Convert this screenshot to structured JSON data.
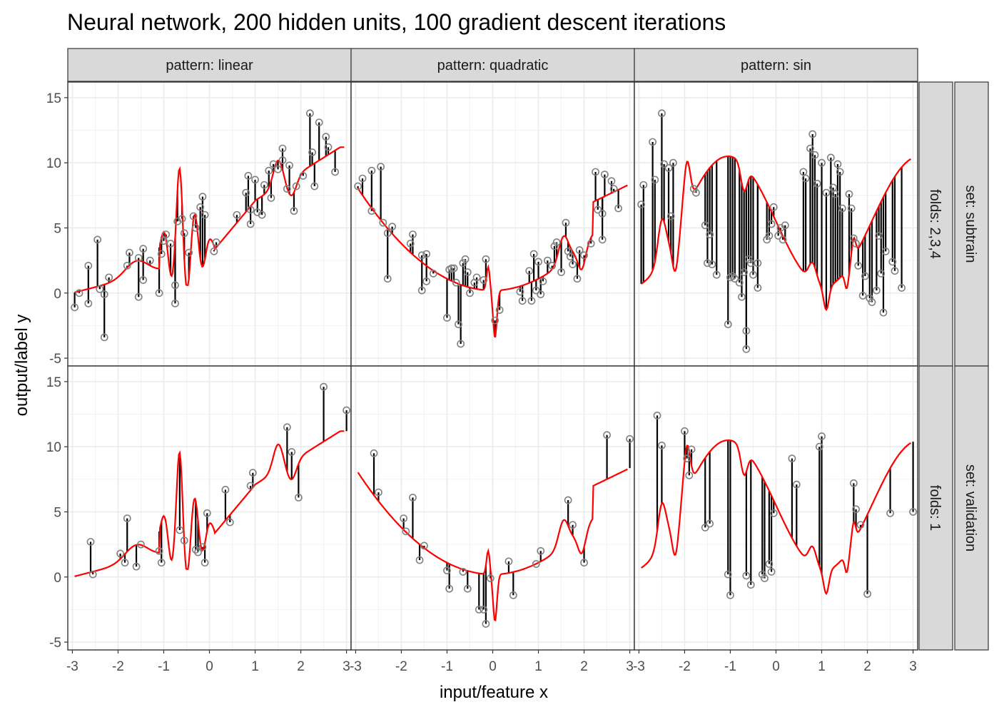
{
  "chart_data": {
    "type": "scatter",
    "title": "Neural network, 200 hidden units, 100 gradient descent iterations",
    "xlabel": "input/feature x",
    "ylabel": "output/label y",
    "xlim": [
      -3.1,
      3.1
    ],
    "ylim": [
      -5,
      15
    ],
    "x_ticks": [
      -3,
      -2,
      -1,
      0,
      1,
      2,
      3
    ],
    "y_ticks": [
      -5,
      0,
      5,
      10,
      15
    ],
    "column_facet": [
      "pattern: linear",
      "pattern: quadratic",
      "pattern: sin"
    ],
    "row_facet_outer": [
      "set: subtrain",
      "set: validation"
    ],
    "row_facet_inner": [
      "folds: 2,3,4",
      "folds: 1"
    ],
    "grid": true,
    "colors": {
      "prediction_line": "#ff0000",
      "residual_segment": "#000000",
      "points": "#808080",
      "strip_fill": "#d9d9d9",
      "border": "#333333"
    },
    "panels": [
      {
        "pattern": "pattern: linear",
        "set": "set: subtrain",
        "points": [
          [
            -2.95,
            -1.1
          ],
          [
            -2.85,
            0.0
          ],
          [
            -2.65,
            2.1
          ],
          [
            -2.65,
            -0.8
          ],
          [
            -2.45,
            4.1
          ],
          [
            -2.4,
            0.3
          ],
          [
            -2.3,
            -3.4
          ],
          [
            -2.3,
            -0.1
          ],
          [
            -2.2,
            1.2
          ],
          [
            -1.8,
            2.1
          ],
          [
            -1.75,
            3.1
          ],
          [
            -1.55,
            2.7
          ],
          [
            -1.55,
            -0.3
          ],
          [
            -1.45,
            3.4
          ],
          [
            -1.45,
            1.0
          ],
          [
            -1.3,
            2.5
          ],
          [
            -1.1,
            0.0
          ],
          [
            -1.05,
            3.0
          ],
          [
            -1.0,
            4.0
          ],
          [
            -0.95,
            4.5
          ],
          [
            -0.85,
            3.8
          ],
          [
            -0.75,
            0.6
          ],
          [
            -0.75,
            -0.8
          ],
          [
            -0.7,
            5.5
          ],
          [
            -0.6,
            5.7
          ],
          [
            -0.55,
            4.6
          ],
          [
            -0.45,
            3.1
          ],
          [
            -0.35,
            5.9
          ],
          [
            -0.3,
            5.0
          ],
          [
            -0.2,
            6.6
          ],
          [
            -0.15,
            7.4
          ],
          [
            -0.1,
            6.0
          ],
          [
            0.1,
            3.2
          ],
          [
            0.15,
            3.9
          ],
          [
            0.6,
            6.0
          ],
          [
            0.8,
            7.7
          ],
          [
            0.85,
            9.0
          ],
          [
            0.9,
            6.4
          ],
          [
            0.9,
            5.3
          ],
          [
            1.0,
            8.7
          ],
          [
            1.05,
            6.2
          ],
          [
            1.15,
            6.0
          ],
          [
            1.2,
            8.3
          ],
          [
            1.3,
            9.4
          ],
          [
            1.35,
            7.3
          ],
          [
            1.4,
            9.9
          ],
          [
            1.5,
            9.5
          ],
          [
            1.6,
            11.1
          ],
          [
            1.6,
            10.2
          ],
          [
            1.7,
            8.0
          ],
          [
            1.75,
            9.8
          ],
          [
            1.85,
            6.3
          ],
          [
            1.9,
            8.2
          ],
          [
            2.05,
            9.0
          ],
          [
            2.2,
            13.8
          ],
          [
            2.25,
            10.8
          ],
          [
            2.3,
            8.2
          ],
          [
            2.4,
            13.1
          ],
          [
            2.55,
            12.0
          ],
          [
            2.6,
            11.2
          ],
          [
            2.75,
            9.3
          ]
        ]
      },
      {
        "pattern": "pattern: quadratic",
        "set": "set: subtrain",
        "points": [
          [
            -2.95,
            8.2
          ],
          [
            -2.85,
            8.8
          ],
          [
            -2.65,
            9.4
          ],
          [
            -2.65,
            6.3
          ],
          [
            -2.45,
            9.7
          ],
          [
            -2.4,
            5.4
          ],
          [
            -2.3,
            4.6
          ],
          [
            -2.3,
            1.1
          ],
          [
            -2.2,
            5.1
          ],
          [
            -1.8,
            3.8
          ],
          [
            -1.75,
            4.5
          ],
          [
            -1.55,
            2.9
          ],
          [
            -1.55,
            0.2
          ],
          [
            -1.45,
            3.0
          ],
          [
            -1.45,
            0.9
          ],
          [
            -1.3,
            1.5
          ],
          [
            -1.0,
            -1.9
          ],
          [
            -0.95,
            1.8
          ],
          [
            -0.9,
            1.9
          ],
          [
            -0.85,
            1.9
          ],
          [
            -0.8,
            0.8
          ],
          [
            -0.75,
            -2.4
          ],
          [
            -0.7,
            -3.9
          ],
          [
            -0.65,
            2.3
          ],
          [
            -0.6,
            2.6
          ],
          [
            -0.55,
            1.6
          ],
          [
            -0.5,
            0.0
          ],
          [
            -0.4,
            0.8
          ],
          [
            -0.35,
            1.2
          ],
          [
            -0.2,
            1.0
          ],
          [
            -0.15,
            2.6
          ],
          [
            0.05,
            -2.1
          ],
          [
            0.15,
            -1.3
          ],
          [
            0.6,
            0.1
          ],
          [
            0.65,
            -0.6
          ],
          [
            0.8,
            1.7
          ],
          [
            0.85,
            -0.6
          ],
          [
            0.9,
            3.0
          ],
          [
            0.95,
            0.2
          ],
          [
            1.0,
            2.4
          ],
          [
            1.05,
            -0.1
          ],
          [
            1.1,
            0.9
          ],
          [
            1.2,
            2.5
          ],
          [
            1.3,
            2.1
          ],
          [
            1.35,
            3.6
          ],
          [
            1.4,
            3.9
          ],
          [
            1.5,
            1.6
          ],
          [
            1.6,
            5.4
          ],
          [
            1.65,
            3.2
          ],
          [
            1.7,
            2.8
          ],
          [
            1.75,
            2.2
          ],
          [
            1.85,
            1.1
          ],
          [
            1.9,
            3.3
          ],
          [
            2.0,
            2.9
          ],
          [
            2.15,
            3.8
          ],
          [
            2.25,
            9.3
          ],
          [
            2.3,
            6.4
          ],
          [
            2.4,
            6.1
          ],
          [
            2.4,
            4.1
          ],
          [
            2.45,
            9.1
          ],
          [
            2.6,
            8.6
          ],
          [
            2.65,
            8.0
          ],
          [
            2.75,
            6.5
          ]
        ]
      },
      {
        "pattern": "pattern: sin",
        "set": "set: subtrain",
        "points": [
          [
            -2.95,
            6.8
          ],
          [
            -2.9,
            8.3
          ],
          [
            -2.7,
            11.6
          ],
          [
            -2.65,
            8.7
          ],
          [
            -2.5,
            13.8
          ],
          [
            -2.45,
            9.9
          ],
          [
            -2.35,
            9.6
          ],
          [
            -2.3,
            5.9
          ],
          [
            -2.25,
            10.0
          ],
          [
            -1.8,
            8.0
          ],
          [
            -1.75,
            7.7
          ],
          [
            -1.55,
            5.2
          ],
          [
            -1.5,
            2.3
          ],
          [
            -1.45,
            4.5
          ],
          [
            -1.4,
            2.2
          ],
          [
            -1.3,
            1.4
          ],
          [
            -1.05,
            -2.4
          ],
          [
            -1.0,
            1.2
          ],
          [
            -0.95,
            1.3
          ],
          [
            -0.9,
            1.1
          ],
          [
            -0.8,
            0.8
          ],
          [
            -0.75,
            -0.3
          ],
          [
            -0.7,
            1.6
          ],
          [
            -0.65,
            -2.9
          ],
          [
            -0.65,
            -4.3
          ],
          [
            -0.6,
            2.6
          ],
          [
            -0.55,
            2.3
          ],
          [
            -0.5,
            1.4
          ],
          [
            -0.4,
            0.4
          ],
          [
            -0.4,
            2.3
          ],
          [
            -0.2,
            4.1
          ],
          [
            -0.15,
            4.4
          ],
          [
            -0.1,
            5.3
          ],
          [
            -0.05,
            6.6
          ],
          [
            0.05,
            4.4
          ],
          [
            0.1,
            5.0
          ],
          [
            0.15,
            4.1
          ],
          [
            0.2,
            5.2
          ],
          [
            0.6,
            9.3
          ],
          [
            0.65,
            8.8
          ],
          [
            0.75,
            11.1
          ],
          [
            0.8,
            12.2
          ],
          [
            0.85,
            10.6
          ],
          [
            0.9,
            8.4
          ],
          [
            1.0,
            10.0
          ],
          [
            1.1,
            7.7
          ],
          [
            1.2,
            10.4
          ],
          [
            1.25,
            8.1
          ],
          [
            1.3,
            7.6
          ],
          [
            1.35,
            9.9
          ],
          [
            1.4,
            9.3
          ],
          [
            1.45,
            6.5
          ],
          [
            1.6,
            7.6
          ],
          [
            1.65,
            6.5
          ],
          [
            1.7,
            4.2
          ],
          [
            1.75,
            3.8
          ],
          [
            1.8,
            2.1
          ],
          [
            1.9,
            -0.2
          ],
          [
            1.95,
            1.3
          ],
          [
            2.05,
            -0.4
          ],
          [
            2.1,
            -0.7
          ],
          [
            2.2,
            0.2
          ],
          [
            2.25,
            4.4
          ],
          [
            2.3,
            1.5
          ],
          [
            2.35,
            -1.5
          ],
          [
            2.4,
            3.2
          ],
          [
            2.55,
            2.4
          ],
          [
            2.6,
            1.7
          ],
          [
            2.75,
            0.4
          ]
        ]
      },
      {
        "pattern": "pattern: linear",
        "set": "set: validation",
        "points": [
          [
            -2.6,
            2.7
          ],
          [
            -2.55,
            0.2
          ],
          [
            -1.95,
            1.8
          ],
          [
            -1.85,
            1.1
          ],
          [
            -1.8,
            4.5
          ],
          [
            -1.6,
            0.8
          ],
          [
            -1.5,
            2.5
          ],
          [
            -1.1,
            2.0
          ],
          [
            -1.05,
            1.1
          ],
          [
            -0.65,
            3.6
          ],
          [
            -0.55,
            2.8
          ],
          [
            -0.3,
            2.1
          ],
          [
            -0.25,
            1.9
          ],
          [
            -0.15,
            2.3
          ],
          [
            -0.1,
            1.1
          ],
          [
            -0.05,
            4.9
          ],
          [
            0.35,
            6.7
          ],
          [
            0.45,
            4.2
          ],
          [
            0.9,
            7.0
          ],
          [
            0.95,
            8.0
          ],
          [
            1.7,
            11.5
          ],
          [
            1.8,
            9.6
          ],
          [
            1.95,
            6.1
          ],
          [
            2.5,
            14.6
          ],
          [
            3.0,
            12.8
          ]
        ]
      },
      {
        "pattern": "pattern: quadratic",
        "set": "set: validation",
        "points": [
          [
            -2.6,
            9.5
          ],
          [
            -2.5,
            6.5
          ],
          [
            -1.95,
            4.5
          ],
          [
            -1.9,
            3.5
          ],
          [
            -1.75,
            6.1
          ],
          [
            -1.6,
            1.3
          ],
          [
            -1.5,
            2.4
          ],
          [
            -1.0,
            0.5
          ],
          [
            -0.95,
            -0.9
          ],
          [
            -0.65,
            0.4
          ],
          [
            -0.55,
            -0.9
          ],
          [
            -0.3,
            -2.5
          ],
          [
            -0.2,
            -2.5
          ],
          [
            -0.15,
            -3.6
          ],
          [
            -0.05,
            -0.1
          ],
          [
            0.35,
            1.2
          ],
          [
            0.45,
            -1.4
          ],
          [
            0.95,
            1.0
          ],
          [
            1.05,
            2.0
          ],
          [
            1.65,
            5.9
          ],
          [
            1.75,
            4.0
          ],
          [
            2.0,
            1.1
          ],
          [
            2.5,
            10.9
          ],
          [
            3.0,
            10.6
          ]
        ]
      },
      {
        "pattern": "pattern: sin",
        "set": "set: validation",
        "points": [
          [
            -2.6,
            12.4
          ],
          [
            -2.5,
            10.1
          ],
          [
            -2.0,
            11.2
          ],
          [
            -1.95,
            9.1
          ],
          [
            -1.9,
            7.8
          ],
          [
            -1.85,
            9.8
          ],
          [
            -1.55,
            3.8
          ],
          [
            -1.45,
            4.1
          ],
          [
            -1.05,
            0.2
          ],
          [
            -1.0,
            -1.4
          ],
          [
            -0.65,
            0.1
          ],
          [
            -0.55,
            -0.6
          ],
          [
            -0.3,
            0.2
          ],
          [
            -0.25,
            -0.1
          ],
          [
            -0.15,
            1.0
          ],
          [
            -0.1,
            0.4
          ],
          [
            -0.05,
            4.9
          ],
          [
            0.35,
            9.1
          ],
          [
            0.45,
            7.1
          ],
          [
            0.95,
            10.0
          ],
          [
            1.0,
            10.8
          ],
          [
            1.7,
            7.2
          ],
          [
            1.75,
            5.2
          ],
          [
            1.85,
            4.0
          ],
          [
            2.0,
            -1.3
          ],
          [
            2.5,
            4.9
          ],
          [
            3.0,
            5.0
          ]
        ]
      }
    ]
  }
}
